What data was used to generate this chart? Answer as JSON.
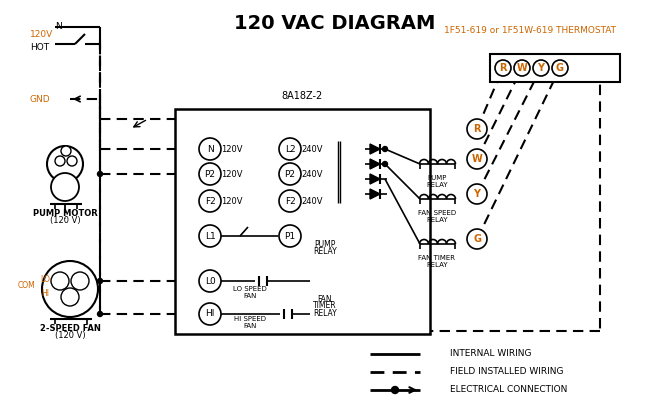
{
  "title": "120 VAC DIAGRAM",
  "title_fontsize": 16,
  "title_bold": true,
  "bg_color": "#ffffff",
  "line_color": "#000000",
  "orange_color": "#cc6600",
  "thermostat_label": "1F51-619 or 1F51W-619 THERMOSTAT",
  "controller_label": "8A18Z-2",
  "legend_items": [
    {
      "label": "INTERNAL WIRING",
      "style": "solid"
    },
    {
      "label": "FIELD INSTALLED WIRING",
      "style": "dashed"
    },
    {
      "label": "ELECTRICAL CONNECTION",
      "style": "arrow"
    }
  ],
  "terminal_circles": [
    "R",
    "W",
    "Y",
    "G"
  ],
  "relay_labels": [
    "R",
    "W",
    "Y",
    "G"
  ],
  "controller_terminals_left": [
    "N",
    "P2",
    "F2",
    "L1",
    "L0",
    "HI"
  ],
  "controller_voltages_left": [
    "120V",
    "120V",
    "120V"
  ],
  "controller_terminals_right": [
    "L2",
    "P2",
    "F2"
  ],
  "controller_voltages_right": [
    "240V",
    "240V",
    "240V"
  ]
}
